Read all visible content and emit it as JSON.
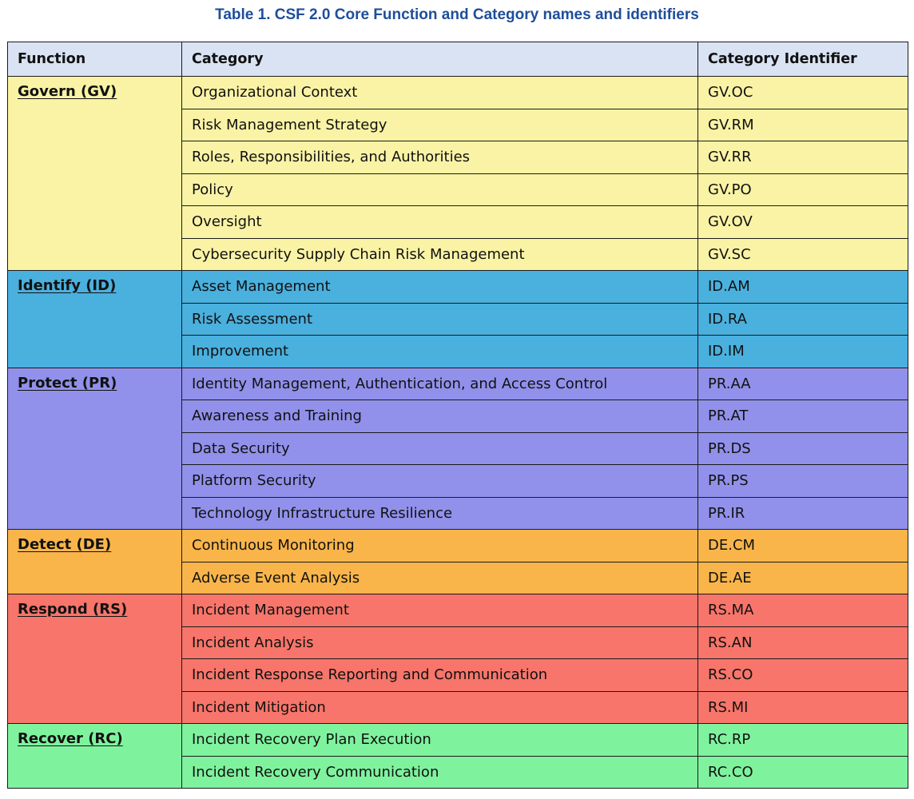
{
  "caption": "Table 1. CSF 2.0 Core Function and Category names and identifiers",
  "headers": {
    "function": "Function",
    "category": "Category",
    "identifier": "Category Identifier"
  },
  "colors": {
    "header": "#dae3f3",
    "govern": "#faf3a5",
    "identify": "#4ab0de",
    "protect": "#9191eb",
    "detect": "#f9b54a",
    "respond": "#f7756a",
    "recover": "#7ff29e"
  },
  "functions": [
    {
      "key": "govern",
      "name": "Govern (GV)",
      "categories": [
        {
          "name": "Organizational Context",
          "id": "GV.OC"
        },
        {
          "name": "Risk Management Strategy",
          "id": "GV.RM"
        },
        {
          "name": "Roles, Responsibilities, and Authorities",
          "id": "GV.RR"
        },
        {
          "name": "Policy",
          "id": "GV.PO"
        },
        {
          "name": "Oversight",
          "id": "GV.OV"
        },
        {
          "name": "Cybersecurity Supply Chain Risk Management",
          "id": "GV.SC"
        }
      ]
    },
    {
      "key": "identify",
      "name": "Identify (ID)",
      "categories": [
        {
          "name": "Asset Management",
          "id": "ID.AM"
        },
        {
          "name": "Risk Assessment",
          "id": "ID.RA"
        },
        {
          "name": "Improvement",
          "id": "ID.IM"
        }
      ]
    },
    {
      "key": "protect",
      "name": "Protect (PR)",
      "categories": [
        {
          "name": "Identity Management, Authentication, and Access Control",
          "id": "PR.AA"
        },
        {
          "name": "Awareness and Training",
          "id": "PR.AT"
        },
        {
          "name": "Data Security",
          "id": "PR.DS"
        },
        {
          "name": "Platform Security",
          "id": "PR.PS"
        },
        {
          "name": "Technology Infrastructure Resilience",
          "id": "PR.IR"
        }
      ]
    },
    {
      "key": "detect",
      "name": "Detect (DE)",
      "categories": [
        {
          "name": "Continuous Monitoring",
          "id": "DE.CM"
        },
        {
          "name": "Adverse Event Analysis",
          "id": "DE.AE"
        }
      ]
    },
    {
      "key": "respond",
      "name": "Respond (RS)",
      "categories": [
        {
          "name": "Incident Management",
          "id": "RS.MA"
        },
        {
          "name": "Incident Analysis",
          "id": "RS.AN"
        },
        {
          "name": "Incident Response Reporting and Communication",
          "id": "RS.CO"
        },
        {
          "name": "Incident Mitigation",
          "id": "RS.MI"
        }
      ]
    },
    {
      "key": "recover",
      "name": "Recover (RC)",
      "categories": [
        {
          "name": "Incident Recovery Plan Execution",
          "id": "RC.RP"
        },
        {
          "name": "Incident Recovery Communication",
          "id": "RC.CO"
        }
      ]
    }
  ]
}
